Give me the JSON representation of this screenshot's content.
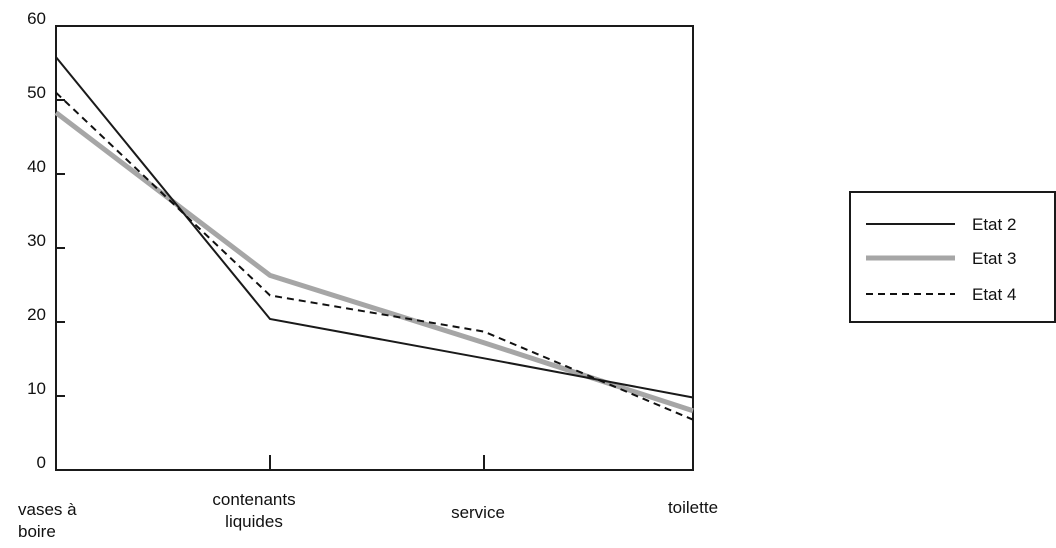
{
  "chart_data": {
    "type": "line",
    "categories": [
      [
        "vases à",
        "boire"
      ],
      [
        "contenants",
        "liquides"
      ],
      [
        "service"
      ],
      [
        "toilette"
      ]
    ],
    "ylim": [
      0,
      60
    ],
    "yticks": [
      0,
      10,
      20,
      30,
      40,
      50,
      60
    ],
    "grid": false,
    "legend_position": "right",
    "series": [
      {
        "name": "Etat 2",
        "values": [
          55.8,
          20.4,
          15.1,
          9.8
        ],
        "color": "#1a1a1a",
        "style": "solid"
      },
      {
        "name": "Etat 3",
        "values": [
          48.3,
          26.3,
          17.2,
          8.0
        ],
        "color": "#a6a6a6",
        "style": "solid-thick"
      },
      {
        "name": "Etat 4",
        "values": [
          51.0,
          23.6,
          18.7,
          6.8
        ],
        "color": "#111111",
        "style": "dashed"
      }
    ]
  }
}
